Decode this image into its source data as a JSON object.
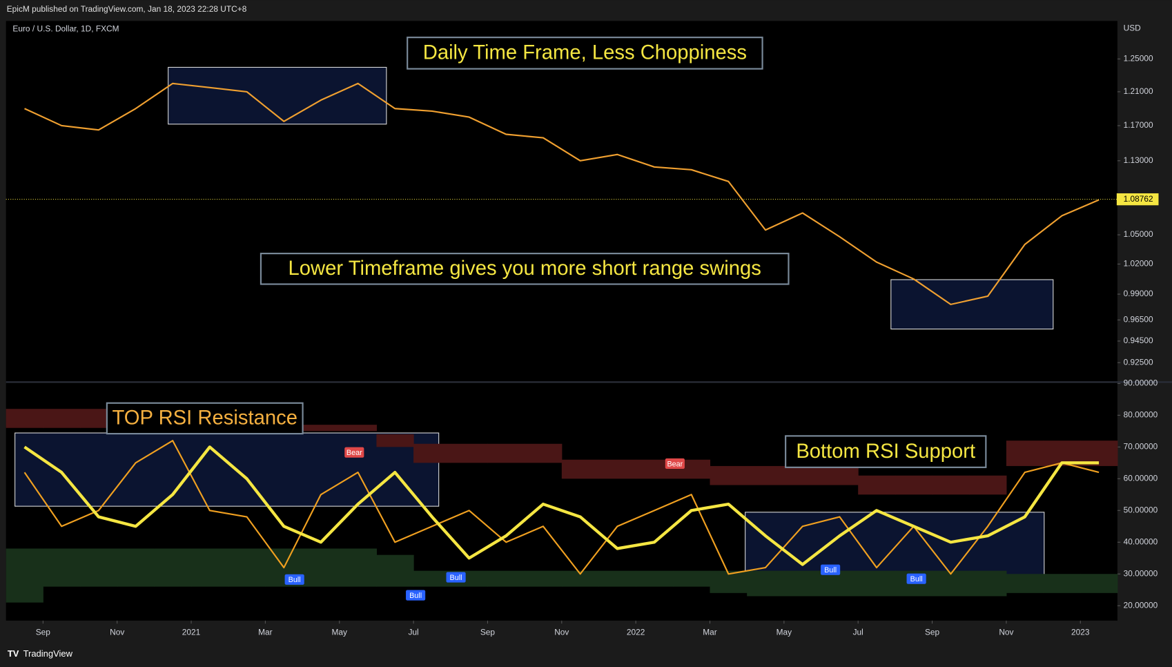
{
  "header": {
    "published": "EpicM published on TradingView.com, Jan 18, 2023 22:28 UTC+8",
    "symbol": "Euro / U.S. Dollar, 1D, FXCM",
    "currency": "USD"
  },
  "footer": "TradingView",
  "chart_data": [
    {
      "type": "line",
      "log_scale": true,
      "grid": false,
      "x": [
        "2020-08",
        "2020-09",
        "2020-10",
        "2020-11",
        "2020-12",
        "2021-01",
        "2021-02",
        "2021-03",
        "2021-04",
        "2021-05",
        "2021-06",
        "2021-07",
        "2021-08",
        "2021-09",
        "2021-10",
        "2021-11",
        "2021-12",
        "2022-01",
        "2022-02",
        "2022-03",
        "2022-04",
        "2022-05",
        "2022-06",
        "2022-07",
        "2022-08",
        "2022-09",
        "2022-10",
        "2022-11",
        "2022-12",
        "2023-01"
      ],
      "series": [
        {
          "color": "#f0a030",
          "values": [
            1.19,
            1.17,
            1.165,
            1.19,
            1.22,
            1.215,
            1.21,
            1.175,
            1.2,
            1.22,
            1.19,
            1.187,
            1.18,
            1.16,
            1.156,
            1.13,
            1.137,
            1.123,
            1.12,
            1.107,
            1.055,
            1.073,
            1.048,
            1.022,
            1.005,
            0.98,
            0.988,
            1.04,
            1.07,
            1.087
          ]
        }
      ],
      "last_value": 1.08762,
      "xlim": [
        "2020-08",
        "2023-02"
      ],
      "ylim": [
        0.908,
        1.298
      ],
      "yticks": [
        {
          "value": 1.25,
          "label": "1.25000"
        },
        {
          "value": 1.21,
          "label": "1.21000"
        },
        {
          "value": 1.17,
          "label": "1.17000"
        },
        {
          "value": 1.13,
          "label": "1.13000"
        },
        {
          "value": 1.05,
          "label": "1.05000"
        },
        {
          "value": 1.02,
          "label": "1.02000"
        },
        {
          "value": 0.99,
          "label": "0.99000"
        },
        {
          "value": 0.965,
          "label": "0.96500"
        },
        {
          "value": 0.945,
          "label": "0.94500"
        },
        {
          "value": 0.925,
          "label": "0.92500"
        }
      ],
      "annotations": [
        "Daily Time Frame, Less Choppiness",
        "Lower Timeframe gives you more short range swings"
      ]
    },
    {
      "type": "line",
      "grid": false,
      "x": [
        "2020-08",
        "2020-09",
        "2020-10",
        "2020-11",
        "2020-12",
        "2021-01",
        "2021-02",
        "2021-03",
        "2021-04",
        "2021-05",
        "2021-06",
        "2021-07",
        "2021-08",
        "2021-09",
        "2021-10",
        "2021-11",
        "2021-12",
        "2022-01",
        "2022-02",
        "2022-03",
        "2022-04",
        "2022-05",
        "2022-06",
        "2022-07",
        "2022-08",
        "2022-09",
        "2022-10",
        "2022-11",
        "2022-12",
        "2023-01"
      ],
      "series": [
        {
          "color": "#f0a020",
          "values": [
            62,
            45,
            50,
            65,
            72,
            50,
            48,
            32,
            55,
            62,
            40,
            45,
            50,
            40,
            45,
            30,
            45,
            50,
            55,
            30,
            32,
            45,
            48,
            32,
            45,
            30,
            45,
            62,
            65,
            62
          ]
        },
        {
          "color": "#f5e642",
          "values": [
            70,
            62,
            48,
            45,
            55,
            70,
            60,
            45,
            40,
            52,
            62,
            48,
            35,
            42,
            52,
            48,
            38,
            40,
            50,
            52,
            42,
            33,
            42,
            50,
            45,
            40,
            42,
            48,
            65,
            65
          ]
        }
      ],
      "resistance_band": {
        "color": "#4a1616",
        "upper": [
          82,
          82,
          82,
          82,
          82,
          79,
          77,
          77,
          77,
          77,
          74,
          71,
          71,
          71,
          71,
          66,
          66,
          66,
          66,
          64,
          64,
          64,
          64,
          61,
          61,
          61,
          61,
          72,
          72,
          72
        ],
        "lower": [
          76,
          76,
          76,
          76,
          76,
          75,
          75,
          75,
          75,
          75,
          70,
          65,
          65,
          65,
          65,
          60,
          60,
          60,
          60,
          58,
          58,
          58,
          58,
          55,
          55,
          55,
          55,
          64,
          64,
          64
        ]
      },
      "support_band": {
        "color": "#18301a",
        "upper": [
          38,
          38,
          38,
          38,
          38,
          38,
          38,
          38,
          38,
          38,
          36,
          31,
          31,
          31,
          31,
          31,
          31,
          31,
          31,
          31,
          31,
          31,
          31,
          31,
          31,
          31,
          31,
          30,
          30,
          30
        ],
        "lower": [
          21,
          26,
          26,
          26,
          26,
          26,
          26,
          26,
          26,
          26,
          26,
          26,
          26,
          26,
          26,
          26,
          26,
          26,
          26,
          24,
          23,
          23,
          23,
          23,
          23,
          23,
          23,
          24,
          24,
          24
        ]
      },
      "xlim": [
        "2020-08",
        "2023-02"
      ],
      "xticks": [
        {
          "value": "2020-09",
          "label": "Sep"
        },
        {
          "value": "2020-11",
          "label": "Nov"
        },
        {
          "value": "2021-01",
          "label": "2021"
        },
        {
          "value": "2021-03",
          "label": "Mar"
        },
        {
          "value": "2021-05",
          "label": "May"
        },
        {
          "value": "2021-07",
          "label": "Jul"
        },
        {
          "value": "2021-09",
          "label": "Sep"
        },
        {
          "value": "2021-11",
          "label": "Nov"
        },
        {
          "value": "2022-01",
          "label": "2022"
        },
        {
          "value": "2022-03",
          "label": "Mar"
        },
        {
          "value": "2022-05",
          "label": "May"
        },
        {
          "value": "2022-07",
          "label": "Jul"
        },
        {
          "value": "2022-09",
          "label": "Sep"
        },
        {
          "value": "2022-11",
          "label": "Nov"
        },
        {
          "value": "2023-01",
          "label": "2023"
        }
      ],
      "ylim": [
        15.3,
        90.2
      ],
      "yticks": [
        {
          "value": 90,
          "label": "90.00000"
        },
        {
          "value": 80,
          "label": "80.00000"
        },
        {
          "value": 70,
          "label": "70.00000"
        },
        {
          "value": 60,
          "label": "60.00000"
        },
        {
          "value": 50,
          "label": "50.00000"
        },
        {
          "value": 40,
          "label": "40.00000"
        },
        {
          "value": 30,
          "label": "30.00000"
        },
        {
          "value": 20,
          "label": "20.00000"
        }
      ],
      "annotations": [
        "TOP RSI Resistance",
        "Bottom RSI Support"
      ],
      "signal_labels": [
        "Bear",
        "Bear",
        "Bull",
        "Bull",
        "Bull",
        "Bull",
        "Bull"
      ]
    }
  ]
}
